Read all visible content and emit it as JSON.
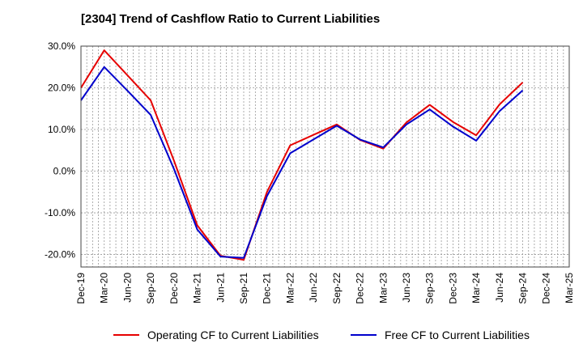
{
  "chart_data": {
    "type": "line",
    "title": "[2304]  Trend of Cashflow Ratio to Current Liabilities",
    "categories": [
      "Dec-19",
      "Mar-20",
      "Jun-20",
      "Sep-20",
      "Dec-20",
      "Mar-21",
      "Jun-21",
      "Sep-21",
      "Dec-21",
      "Mar-22",
      "Jun-22",
      "Sep-22",
      "Dec-22",
      "Mar-23",
      "Jun-23",
      "Sep-23",
      "Dec-23",
      "Mar-24",
      "Jun-24",
      "Sep-24",
      "Dec-24",
      "Mar-25"
    ],
    "series": [
      {
        "name": "Operating CF to Current Liabilities",
        "color": "#e60000",
        "values": [
          20.0,
          29.0,
          23.0,
          17.0,
          2.5,
          -13.0,
          -20.3,
          -21.3,
          -5.0,
          6.2,
          8.7,
          11.2,
          7.5,
          5.4,
          11.7,
          15.9,
          11.8,
          8.6,
          16.0,
          21.3,
          null,
          null
        ]
      },
      {
        "name": "Free CF to Current Liabilities",
        "color": "#0000cc",
        "values": [
          17.0,
          25.0,
          19.3,
          13.5,
          0.5,
          -14.0,
          -20.5,
          -20.8,
          -6.0,
          4.3,
          7.6,
          10.9,
          7.6,
          5.7,
          11.2,
          14.8,
          10.7,
          7.3,
          14.4,
          19.4,
          null,
          null
        ]
      }
    ],
    "yticks": [
      "30.0%",
      "20.0%",
      "10.0%",
      "0.0%",
      "-10.0%",
      "-20.0%"
    ],
    "ytick_values": [
      30,
      20,
      10,
      0,
      -10,
      -20
    ],
    "ylim": [
      -23,
      30
    ],
    "grid": true,
    "legend_position": "bottom"
  }
}
